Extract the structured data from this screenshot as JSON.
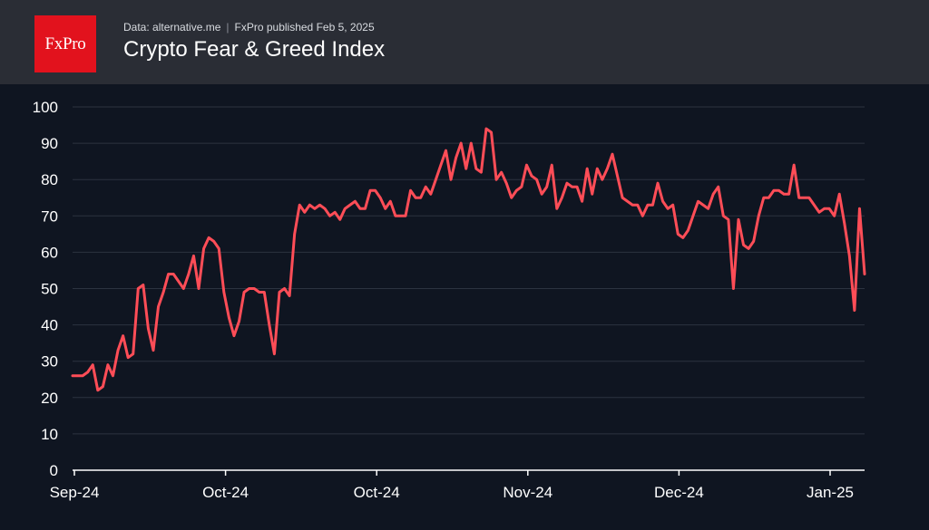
{
  "header": {
    "logo_text": "FxPro",
    "source": "Data: alternative.me",
    "published": "FxPro published Feb 5, 2025",
    "title": "Crypto Fear & Greed Index",
    "background": "#2a2d35",
    "logo_color": "#e2121d"
  },
  "chart_data": {
    "type": "line",
    "title": "Crypto Fear & Greed Index",
    "xlabel": "",
    "ylabel": "",
    "ylim": [
      0,
      100
    ],
    "yticks": [
      "0",
      "10",
      "20",
      "30",
      "40",
      "50",
      "60",
      "70",
      "80",
      "90",
      "100"
    ],
    "xticks": [
      "Sep-24",
      "Oct-24",
      "Oct-24",
      "Nov-24",
      "Dec-24",
      "Jan-25"
    ],
    "grid": true,
    "line_color": "#ff4d57",
    "series": [
      {
        "name": "Fear & Greed Index",
        "values": [
          26,
          26,
          26,
          27,
          29,
          22,
          23,
          29,
          26,
          33,
          37,
          31,
          32,
          50,
          51,
          39,
          33,
          45,
          49,
          54,
          54,
          52,
          50,
          54,
          59,
          50,
          61,
          64,
          63,
          61,
          49,
          42,
          37,
          41,
          49,
          50,
          50,
          49,
          49,
          40,
          32,
          49,
          50,
          48,
          65,
          73,
          71,
          73,
          72,
          73,
          72,
          70,
          71,
          69,
          72,
          73,
          74,
          72,
          72,
          77,
          77,
          75,
          72,
          74,
          70,
          70,
          70,
          77,
          75,
          75,
          78,
          76,
          80,
          84,
          88,
          80,
          86,
          90,
          83,
          90,
          83,
          82,
          94,
          93,
          80,
          82,
          79,
          75,
          77,
          78,
          84,
          81,
          80,
          76,
          78,
          84,
          72,
          75,
          79,
          78,
          78,
          74,
          83,
          76,
          83,
          80,
          83,
          87,
          81,
          75,
          74,
          73,
          73,
          70,
          73,
          73,
          79,
          74,
          72,
          73,
          65,
          64,
          66,
          70,
          74,
          73,
          72,
          76,
          78,
          70,
          69,
          50,
          69,
          62,
          61,
          63,
          70,
          75,
          75,
          77,
          77,
          76,
          76,
          84,
          75,
          75,
          75,
          73,
          71,
          72,
          72,
          70,
          76,
          68,
          59,
          44,
          72,
          54
        ]
      }
    ]
  }
}
